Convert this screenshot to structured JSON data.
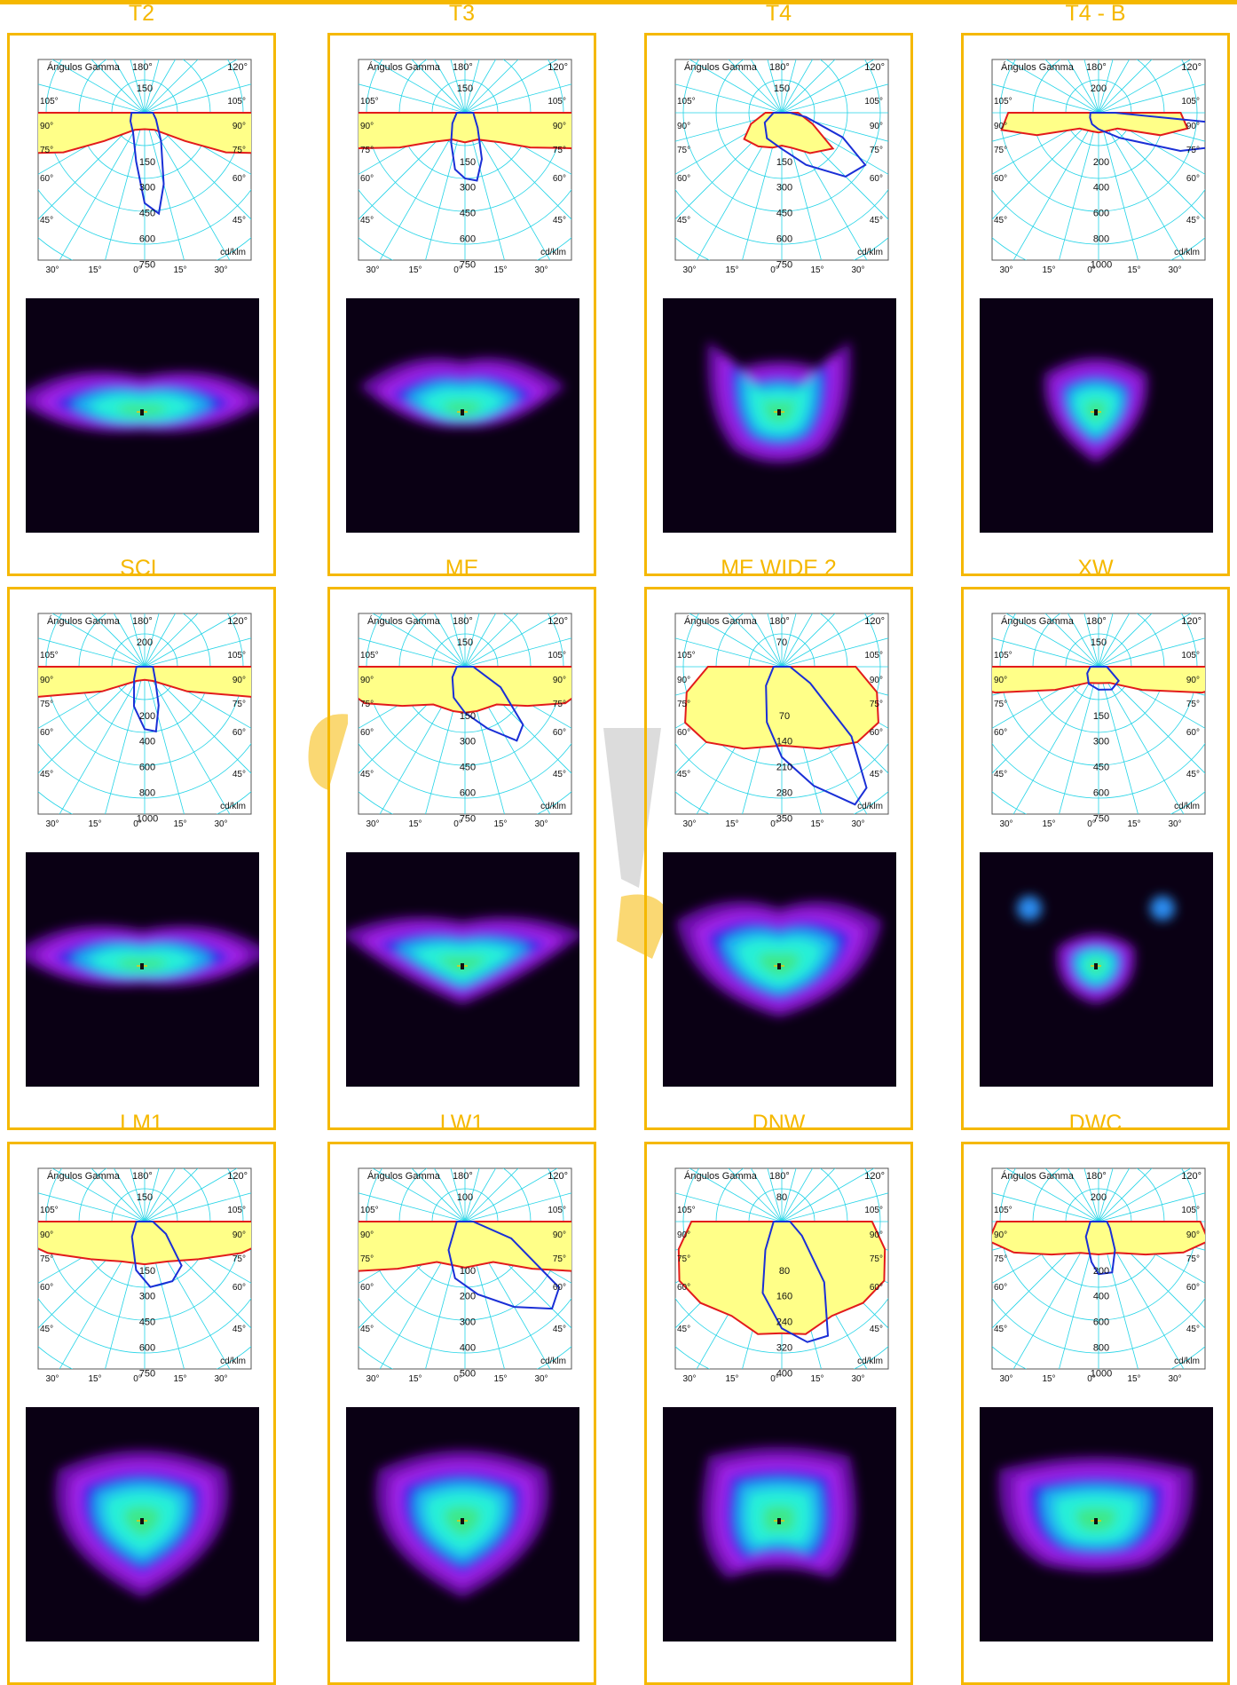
{
  "palette": {
    "accent": "#f5b800",
    "grid": "#22d3e6",
    "curve_c0": "#e21b1b",
    "curve_c90": "#1a2fd6",
    "fill": "#ffff88"
  },
  "polar_labels": {
    "header": "Ángulos Gamma",
    "deg_180": "180°",
    "deg_120": "120°",
    "unit": "cd/klm",
    "left": [
      "105°",
      "90°",
      "75°",
      "60°",
      "45°"
    ],
    "right": [
      "105°",
      "90°",
      "75°",
      "60°",
      "45°"
    ],
    "bottom": [
      "30°",
      "15°",
      "0°",
      "15°",
      "30°"
    ]
  },
  "cards": [
    {
      "title": "T2",
      "top_scale": "150",
      "rings": [
        "150",
        "300",
        "450",
        "600",
        "750"
      ],
      "c0": [
        [
          -90,
          0.82
        ],
        [
          -80,
          0.85
        ],
        [
          -72,
          0.8
        ],
        [
          -64,
          0.55
        ],
        [
          -55,
          0.3
        ],
        [
          -30,
          0.12
        ],
        [
          0,
          0.1
        ],
        [
          30,
          0.12
        ],
        [
          55,
          0.3
        ],
        [
          64,
          0.55
        ],
        [
          72,
          0.8
        ],
        [
          80,
          0.85
        ],
        [
          90,
          0.82
        ]
      ],
      "c90": [
        [
          -90,
          0.08
        ],
        [
          -60,
          0.1
        ],
        [
          -30,
          0.14
        ],
        [
          -10,
          0.3
        ],
        [
          0,
          0.55
        ],
        [
          8,
          0.62
        ],
        [
          15,
          0.45
        ],
        [
          30,
          0.2
        ],
        [
          60,
          0.08
        ],
        [
          90,
          0.05
        ]
      ],
      "heat": "wide"
    },
    {
      "title": "T3",
      "top_scale": "150",
      "rings": [
        "150",
        "300",
        "450",
        "600",
        "750"
      ],
      "c0": [
        [
          -90,
          0.75
        ],
        [
          -80,
          0.78
        ],
        [
          -72,
          0.7
        ],
        [
          -62,
          0.45
        ],
        [
          -50,
          0.28
        ],
        [
          -25,
          0.18
        ],
        [
          0,
          0.18
        ],
        [
          25,
          0.18
        ],
        [
          50,
          0.28
        ],
        [
          62,
          0.45
        ],
        [
          72,
          0.7
        ],
        [
          80,
          0.78
        ],
        [
          90,
          0.75
        ]
      ],
      "c90": [
        [
          -90,
          0.05
        ],
        [
          -50,
          0.1
        ],
        [
          -25,
          0.2
        ],
        [
          -10,
          0.35
        ],
        [
          0,
          0.4
        ],
        [
          10,
          0.42
        ],
        [
          20,
          0.3
        ],
        [
          40,
          0.12
        ],
        [
          90,
          0.05
        ]
      ],
      "heat": "tee"
    },
    {
      "title": "T4",
      "top_scale": "150",
      "rings": [
        "150",
        "300",
        "450",
        "600",
        "750"
      ],
      "c0": [
        [
          -90,
          0.1
        ],
        [
          -70,
          0.2
        ],
        [
          -55,
          0.28
        ],
        [
          -35,
          0.25
        ],
        [
          -15,
          0.22
        ],
        [
          0,
          0.2
        ],
        [
          15,
          0.22
        ],
        [
          35,
          0.3
        ],
        [
          55,
          0.38
        ],
        [
          70,
          0.2
        ],
        [
          90,
          0.1
        ]
      ],
      "c90": [
        [
          -90,
          0.05
        ],
        [
          -60,
          0.12
        ],
        [
          -30,
          0.18
        ],
        [
          0,
          0.22
        ],
        [
          25,
          0.35
        ],
        [
          45,
          0.55
        ],
        [
          58,
          0.6
        ],
        [
          68,
          0.4
        ],
        [
          80,
          0.15
        ],
        [
          90,
          0.05
        ]
      ],
      "heat": "cat"
    },
    {
      "title": "T4 - B",
      "top_scale": "200",
      "rings": [
        "200",
        "400",
        "600",
        "800",
        "1000"
      ],
      "c0": [
        [
          -90,
          0.55
        ],
        [
          -80,
          0.6
        ],
        [
          -70,
          0.4
        ],
        [
          -50,
          0.15
        ],
        [
          -20,
          0.12
        ],
        [
          0,
          0.12
        ],
        [
          20,
          0.12
        ],
        [
          50,
          0.15
        ],
        [
          70,
          0.4
        ],
        [
          80,
          0.55
        ],
        [
          90,
          0.5
        ]
      ],
      "c90": [
        [
          -90,
          0.05
        ],
        [
          -60,
          0.06
        ],
        [
          -30,
          0.08
        ],
        [
          0,
          0.1
        ],
        [
          40,
          0.2
        ],
        [
          65,
          0.55
        ],
        [
          78,
          0.9
        ],
        [
          85,
          0.8
        ],
        [
          90,
          0.1
        ]
      ],
      "heat": "drop"
    },
    {
      "title": "SCL",
      "top_scale": "200",
      "rings": [
        "200",
        "400",
        "600",
        "800",
        "1000"
      ],
      "c0": [
        [
          -90,
          1.0
        ],
        [
          -84,
          1.05
        ],
        [
          -76,
          0.8
        ],
        [
          -60,
          0.3
        ],
        [
          -30,
          0.1
        ],
        [
          0,
          0.08
        ],
        [
          30,
          0.1
        ],
        [
          60,
          0.3
        ],
        [
          76,
          0.8
        ],
        [
          84,
          1.05
        ],
        [
          90,
          1.0
        ]
      ],
      "c90": [
        [
          -90,
          0.05
        ],
        [
          -40,
          0.1
        ],
        [
          -15,
          0.25
        ],
        [
          0,
          0.38
        ],
        [
          10,
          0.4
        ],
        [
          20,
          0.25
        ],
        [
          40,
          0.1
        ],
        [
          90,
          0.05
        ]
      ],
      "heat": "wide"
    },
    {
      "title": "ME",
      "top_scale": "150",
      "rings": [
        "150",
        "300",
        "450",
        "600",
        "750"
      ],
      "c0": [
        [
          -90,
          0.72
        ],
        [
          -80,
          0.75
        ],
        [
          -70,
          0.65
        ],
        [
          -58,
          0.45
        ],
        [
          -40,
          0.3
        ],
        [
          -15,
          0.28
        ],
        [
          0,
          0.28
        ],
        [
          15,
          0.28
        ],
        [
          40,
          0.3
        ],
        [
          58,
          0.45
        ],
        [
          70,
          0.65
        ],
        [
          80,
          0.75
        ],
        [
          90,
          0.72
        ]
      ],
      "c90": [
        [
          -90,
          0.05
        ],
        [
          -50,
          0.1
        ],
        [
          -20,
          0.2
        ],
        [
          0,
          0.28
        ],
        [
          20,
          0.4
        ],
        [
          35,
          0.55
        ],
        [
          45,
          0.5
        ],
        [
          60,
          0.25
        ],
        [
          90,
          0.05
        ]
      ],
      "heat": "wide2"
    },
    {
      "title": "ME WIDE 2",
      "top_scale": "70",
      "rings": [
        "70",
        "140",
        "210",
        "280",
        "350"
      ],
      "c0": [
        [
          -90,
          0.45
        ],
        [
          -75,
          0.6
        ],
        [
          -60,
          0.68
        ],
        [
          -45,
          0.65
        ],
        [
          -25,
          0.55
        ],
        [
          0,
          0.48
        ],
        [
          25,
          0.55
        ],
        [
          45,
          0.65
        ],
        [
          60,
          0.68
        ],
        [
          75,
          0.6
        ],
        [
          90,
          0.45
        ]
      ],
      "c90": [
        [
          -90,
          0.05
        ],
        [
          -40,
          0.15
        ],
        [
          -15,
          0.35
        ],
        [
          0,
          0.55
        ],
        [
          15,
          0.75
        ],
        [
          28,
          0.95
        ],
        [
          35,
          0.9
        ],
        [
          45,
          0.6
        ],
        [
          60,
          0.2
        ],
        [
          90,
          0.05
        ]
      ],
      "heat": "cloud"
    },
    {
      "title": "XW",
      "top_scale": "150",
      "rings": [
        "150",
        "300",
        "450",
        "600",
        "750"
      ],
      "c0": [
        [
          -90,
          0.78
        ],
        [
          -82,
          0.8
        ],
        [
          -76,
          0.65
        ],
        [
          -62,
          0.3
        ],
        [
          -35,
          0.12
        ],
        [
          0,
          0.1
        ],
        [
          35,
          0.12
        ],
        [
          62,
          0.3
        ],
        [
          76,
          0.65
        ],
        [
          82,
          0.8
        ],
        [
          90,
          0.78
        ]
      ],
      "c90": [
        [
          -90,
          0.05
        ],
        [
          -60,
          0.08
        ],
        [
          -30,
          0.12
        ],
        [
          0,
          0.14
        ],
        [
          30,
          0.16
        ],
        [
          55,
          0.15
        ],
        [
          90,
          0.05
        ]
      ],
      "heat": "xw"
    },
    {
      "title": "LM1",
      "top_scale": "150",
      "rings": [
        "150",
        "300",
        "450",
        "600",
        "750"
      ],
      "c0": [
        [
          -90,
          0.75
        ],
        [
          -82,
          0.78
        ],
        [
          -72,
          0.62
        ],
        [
          -55,
          0.4
        ],
        [
          -30,
          0.28
        ],
        [
          0,
          0.26
        ],
        [
          30,
          0.28
        ],
        [
          55,
          0.4
        ],
        [
          72,
          0.62
        ],
        [
          82,
          0.78
        ],
        [
          90,
          0.75
        ]
      ],
      "c90": [
        [
          -90,
          0.05
        ],
        [
          -40,
          0.12
        ],
        [
          -10,
          0.3
        ],
        [
          5,
          0.4
        ],
        [
          25,
          0.4
        ],
        [
          40,
          0.35
        ],
        [
          60,
          0.15
        ],
        [
          90,
          0.05
        ]
      ],
      "heat": "blob"
    },
    {
      "title": "LW1",
      "top_scale": "100",
      "rings": [
        "100",
        "200",
        "300",
        "400",
        "500"
      ],
      "c0": [
        [
          -90,
          0.82
        ],
        [
          -78,
          0.92
        ],
        [
          -68,
          0.82
        ],
        [
          -55,
          0.5
        ],
        [
          -35,
          0.3
        ],
        [
          0,
          0.28
        ],
        [
          35,
          0.3
        ],
        [
          55,
          0.5
        ],
        [
          68,
          0.82
        ],
        [
          78,
          0.92
        ],
        [
          90,
          0.82
        ]
      ],
      "c90": [
        [
          -90,
          0.05
        ],
        [
          -30,
          0.2
        ],
        [
          -10,
          0.35
        ],
        [
          10,
          0.45
        ],
        [
          30,
          0.6
        ],
        [
          45,
          0.75
        ],
        [
          55,
          0.7
        ],
        [
          70,
          0.3
        ],
        [
          90,
          0.05
        ]
      ],
      "heat": "blob"
    },
    {
      "title": "DNW",
      "top_scale": "80",
      "rings": [
        "80",
        "160",
        "240",
        "320",
        "400"
      ],
      "c0": [
        [
          -90,
          0.55
        ],
        [
          -75,
          0.65
        ],
        [
          -60,
          0.72
        ],
        [
          -45,
          0.7
        ],
        [
          -28,
          0.65
        ],
        [
          -12,
          0.7
        ],
        [
          0,
          0.68
        ],
        [
          12,
          0.7
        ],
        [
          28,
          0.65
        ],
        [
          45,
          0.7
        ],
        [
          60,
          0.72
        ],
        [
          75,
          0.65
        ],
        [
          90,
          0.55
        ]
      ],
      "c90": [
        [
          -90,
          0.05
        ],
        [
          -30,
          0.2
        ],
        [
          -15,
          0.45
        ],
        [
          0,
          0.65
        ],
        [
          12,
          0.75
        ],
        [
          22,
          0.75
        ],
        [
          35,
          0.45
        ],
        [
          55,
          0.15
        ],
        [
          90,
          0.05
        ]
      ],
      "heat": "blob2"
    },
    {
      "title": "DWC",
      "top_scale": "200",
      "rings": [
        "200",
        "400",
        "600",
        "800",
        "1000"
      ],
      "c0": [
        [
          -90,
          0.62
        ],
        [
          -80,
          0.68
        ],
        [
          -70,
          0.55
        ],
        [
          -55,
          0.35
        ],
        [
          -30,
          0.22
        ],
        [
          0,
          0.2
        ],
        [
          30,
          0.22
        ],
        [
          55,
          0.35
        ],
        [
          70,
          0.55
        ],
        [
          80,
          0.68
        ],
        [
          90,
          0.62
        ]
      ],
      "c90": [
        [
          -90,
          0.05
        ],
        [
          -40,
          0.12
        ],
        [
          -10,
          0.25
        ],
        [
          0,
          0.32
        ],
        [
          15,
          0.32
        ],
        [
          30,
          0.2
        ],
        [
          60,
          0.08
        ],
        [
          90,
          0.05
        ]
      ],
      "heat": "wideblob"
    }
  ]
}
